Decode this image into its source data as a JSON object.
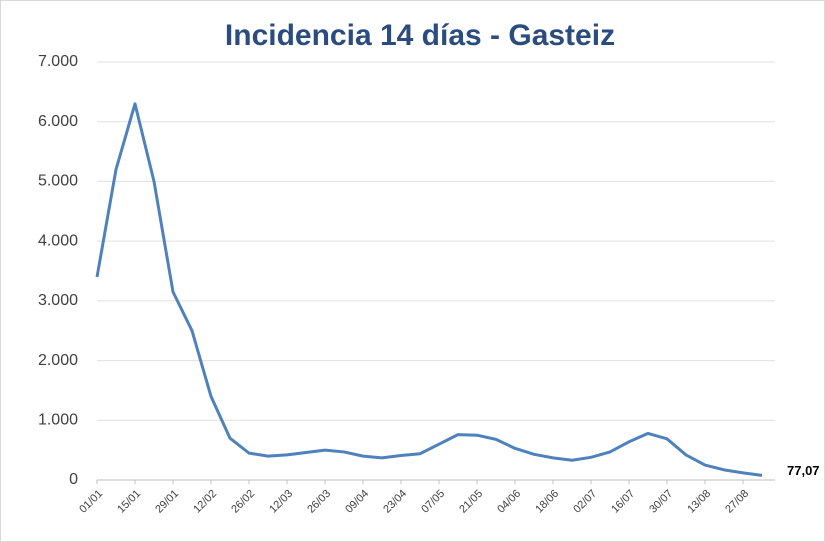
{
  "chart_data": {
    "type": "line",
    "title": "Incidencia 14 días - Gasteiz",
    "categories": [
      "01/01",
      null,
      "15/01",
      null,
      "29/01",
      null,
      "12/02",
      null,
      "26/02",
      null,
      "12/03",
      null,
      "26/03",
      null,
      "09/04",
      null,
      "23/04",
      null,
      "07/05",
      null,
      "21/05",
      null,
      "04/06",
      null,
      "18/06",
      null,
      "02/07",
      null,
      "16/07",
      null,
      "30/07",
      null,
      "13/08",
      null,
      "27/08",
      null
    ],
    "values": [
      3400,
      5200,
      6300,
      5000,
      3150,
      2500,
      1400,
      700,
      450,
      400,
      420,
      460,
      500,
      470,
      400,
      370,
      410,
      440,
      600,
      760,
      750,
      680,
      530,
      430,
      370,
      330,
      380,
      470,
      640,
      780,
      690,
      420,
      250,
      170,
      120,
      77.07
    ],
    "value_labels": [
      null,
      null,
      null,
      null,
      null,
      null,
      null,
      null,
      null,
      null,
      null,
      null,
      null,
      null,
      null,
      null,
      null,
      null,
      null,
      null,
      null,
      null,
      null,
      null,
      null,
      null,
      null,
      null,
      null,
      null,
      null,
      null,
      null,
      null,
      null,
      "77,07"
    ],
    "color": "#4f81bd",
    "ylim": [
      0,
      7000
    ],
    "yticks": [
      0,
      {
        "value": 1000,
        "label": "1.000"
      },
      {
        "value": 2000,
        "label": "2.000"
      },
      {
        "value": 3000,
        "label": "3.000"
      },
      {
        "value": 4000,
        "label": "4.000"
      },
      {
        "value": 5000,
        "label": "5.000"
      },
      {
        "value": 6000,
        "label": "6.000"
      },
      {
        "value": 7000,
        "label": "7.000"
      }
    ],
    "grid": true
  }
}
